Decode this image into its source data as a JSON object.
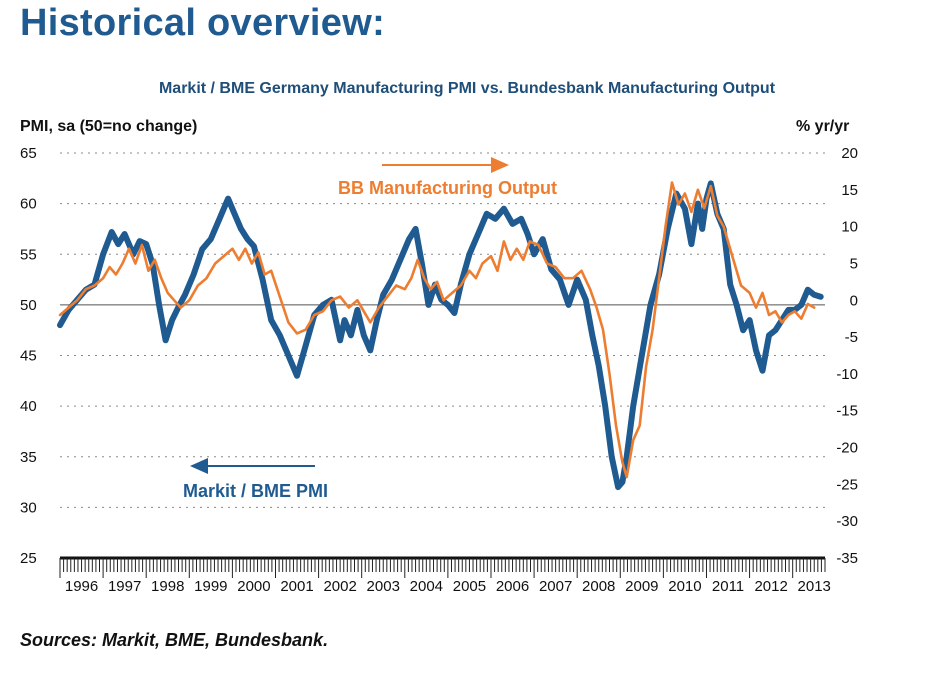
{
  "header": {
    "title": "Historical overview:"
  },
  "footer": {
    "sources": "Sources: Markit, BME, Bundesbank."
  },
  "colors": {
    "pmi": "#1f5b91",
    "output": "#ed7d31",
    "heading": "#1f5b91",
    "chart_title": "#1f4e79"
  },
  "chart_data": {
    "type": "line",
    "title": "Markit / BME Germany Manufacturing PMI vs. Bundesbank Manufacturing Output",
    "ylabel": "PMI, sa (50=no change)",
    "y2label": "% yr/yr",
    "ylim": [
      25,
      65
    ],
    "y2lim": [
      -35,
      20
    ],
    "yticks": [
      "65",
      "60",
      "55",
      "50",
      "45",
      "40",
      "35",
      "30",
      "25"
    ],
    "y2ticks": [
      "20",
      "15",
      "10",
      "5",
      "0",
      "-5",
      "-10",
      "-15",
      "-20",
      "-25",
      "-30",
      "-35"
    ],
    "xlim": [
      1996.0,
      2013.75
    ],
    "xticks": [
      "1996",
      "1997",
      "1998",
      "1999",
      "2000",
      "2001",
      "2002",
      "2003",
      "2004",
      "2005",
      "2006",
      "2007",
      "2008",
      "2009",
      "2010",
      "2011",
      "2012",
      "2013"
    ],
    "grid": "horizontal dotted",
    "series": [
      {
        "name": "Markit / BME PMI",
        "axis": "left",
        "direction_arrow": "left",
        "x": [
          1996.0,
          1996.2,
          1996.4,
          1996.6,
          1996.8,
          1997.0,
          1997.2,
          1997.35,
          1997.5,
          1997.7,
          1997.85,
          1998.0,
          1998.15,
          1998.3,
          1998.45,
          1998.6,
          1998.75,
          1998.9,
          1999.1,
          1999.3,
          1999.5,
          1999.7,
          1999.9,
          2000.05,
          2000.2,
          2000.35,
          2000.5,
          2000.7,
          2000.9,
          2001.1,
          2001.3,
          2001.5,
          2001.7,
          2001.8,
          2001.9,
          2002.1,
          2002.3,
          2002.5,
          2002.6,
          2002.75,
          2002.9,
          2003.05,
          2003.2,
          2003.35,
          2003.5,
          2003.7,
          2003.9,
          2004.1,
          2004.25,
          2004.4,
          2004.55,
          2004.7,
          2004.85,
          2005.0,
          2005.15,
          2005.3,
          2005.5,
          2005.7,
          2005.9,
          2006.1,
          2006.3,
          2006.5,
          2006.7,
          2006.85,
          2007.0,
          2007.2,
          2007.4,
          2007.6,
          2007.8,
          2008.0,
          2008.2,
          2008.35,
          2008.5,
          2008.65,
          2008.8,
          2008.95,
          2009.05,
          2009.15,
          2009.3,
          2009.5,
          2009.7,
          2009.9,
          2010.1,
          2010.3,
          2010.5,
          2010.65,
          2010.8,
          2010.9,
          2011.0,
          2011.1,
          2011.25,
          2011.4,
          2011.55,
          2011.7,
          2011.85,
          2012.0,
          2012.15,
          2012.3,
          2012.45,
          2012.6,
          2012.75,
          2012.9,
          2013.05,
          2013.2,
          2013.35,
          2013.5,
          2013.65
        ],
        "y": [
          48.0,
          49.5,
          50.5,
          51.5,
          52.0,
          55.0,
          57.2,
          56.0,
          57.0,
          55.0,
          56.3,
          56.0,
          54.0,
          50.0,
          46.5,
          48.5,
          49.8,
          51.0,
          53.0,
          55.5,
          56.5,
          58.5,
          60.5,
          59.0,
          57.5,
          56.5,
          55.8,
          52.5,
          48.5,
          47.0,
          45.0,
          43.0,
          46.0,
          47.5,
          49.0,
          50.0,
          50.5,
          46.5,
          48.5,
          47.0,
          49.5,
          47.0,
          45.5,
          48.5,
          51.0,
          52.5,
          54.5,
          56.5,
          57.5,
          54.0,
          50.0,
          52.0,
          50.5,
          50.0,
          49.2,
          52.0,
          55.0,
          57.0,
          59.0,
          58.5,
          59.5,
          58.0,
          58.5,
          57.0,
          55.0,
          56.5,
          53.5,
          52.5,
          50.0,
          52.5,
          50.5,
          47.0,
          44.0,
          40.0,
          35.0,
          32.0,
          32.5,
          35.0,
          40.0,
          45.0,
          50.0,
          53.0,
          57.5,
          61.0,
          59.5,
          56.0,
          60.0,
          57.5,
          60.5,
          62.0,
          59.0,
          57.5,
          52.0,
          50.0,
          47.5,
          48.5,
          45.5,
          43.5,
          47.0,
          47.5,
          48.5,
          49.5,
          49.5,
          50.0,
          51.5,
          51.0,
          50.8
        ]
      },
      {
        "name": "BB Manufacturing Output",
        "axis": "right",
        "direction_arrow": "right",
        "x": [
          1996.0,
          1996.2,
          1996.4,
          1996.6,
          1996.8,
          1997.0,
          1997.15,
          1997.3,
          1997.45,
          1997.6,
          1997.75,
          1997.9,
          1998.05,
          1998.2,
          1998.35,
          1998.5,
          1998.65,
          1998.8,
          1999.0,
          1999.2,
          1999.4,
          1999.6,
          1999.8,
          2000.0,
          2000.15,
          2000.3,
          2000.45,
          2000.6,
          2000.75,
          2000.9,
          2001.1,
          2001.3,
          2001.5,
          2001.7,
          2001.9,
          2002.1,
          2002.3,
          2002.5,
          2002.7,
          2002.9,
          2003.05,
          2003.2,
          2003.4,
          2003.6,
          2003.8,
          2004.0,
          2004.15,
          2004.3,
          2004.45,
          2004.6,
          2004.75,
          2004.9,
          2005.1,
          2005.3,
          2005.5,
          2005.65,
          2005.8,
          2006.0,
          2006.15,
          2006.3,
          2006.45,
          2006.6,
          2006.75,
          2006.9,
          2007.1,
          2007.3,
          2007.5,
          2007.7,
          2007.9,
          2008.1,
          2008.3,
          2008.45,
          2008.6,
          2008.75,
          2008.9,
          2009.05,
          2009.15,
          2009.3,
          2009.45,
          2009.6,
          2009.75,
          2009.9,
          2010.05,
          2010.2,
          2010.35,
          2010.5,
          2010.65,
          2010.8,
          2010.95,
          2011.1,
          2011.25,
          2011.4,
          2011.6,
          2011.8,
          2012.0,
          2012.15,
          2012.3,
          2012.45,
          2012.6,
          2012.75,
          2012.9,
          2013.05,
          2013.2,
          2013.35,
          2013.5
        ],
        "y": [
          -2.0,
          -1.0,
          0.0,
          1.5,
          2.0,
          3.0,
          4.5,
          3.5,
          5.0,
          7.0,
          5.0,
          7.5,
          4.0,
          5.5,
          3.0,
          1.0,
          0.0,
          -1.0,
          0.0,
          2.0,
          3.0,
          5.0,
          6.0,
          7.0,
          5.5,
          7.0,
          5.0,
          6.5,
          3.5,
          4.0,
          0.5,
          -3.0,
          -4.5,
          -4.0,
          -2.0,
          -1.5,
          0.0,
          0.5,
          -1.0,
          0.0,
          -1.5,
          -3.0,
          -1.0,
          0.5,
          2.0,
          1.5,
          3.0,
          5.5,
          3.0,
          1.5,
          2.5,
          0.0,
          1.0,
          2.0,
          4.0,
          3.0,
          5.0,
          6.0,
          4.0,
          8.0,
          5.5,
          7.0,
          5.5,
          8.0,
          7.5,
          5.0,
          4.5,
          3.0,
          3.0,
          4.0,
          1.5,
          -1.0,
          -4.0,
          -10.0,
          -17.0,
          -22.0,
          -24.0,
          -19.0,
          -17.0,
          -9.0,
          -4.0,
          3.0,
          10.0,
          16.0,
          13.0,
          14.5,
          12.0,
          15.0,
          12.5,
          15.5,
          11.5,
          10.0,
          6.0,
          2.0,
          1.0,
          -1.0,
          1.0,
          -2.0,
          -1.5,
          -3.0,
          -2.0,
          -1.5,
          -2.5,
          -0.5,
          -1.0
        ]
      }
    ],
    "annotations": [
      {
        "text": "BB Manufacturing Output",
        "color": "#ed7d31",
        "arrow": "right"
      },
      {
        "text": "Markit / BME PMI",
        "color": "#1f5b91",
        "arrow": "left"
      }
    ]
  }
}
